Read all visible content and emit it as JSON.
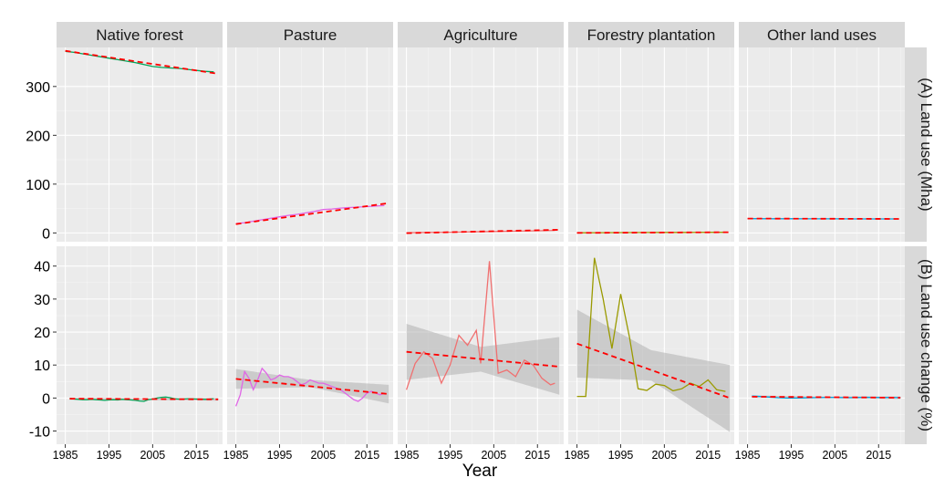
{
  "chart_data": {
    "type": "line",
    "xlabel": "Year",
    "x_ticks": [
      1985,
      1995,
      2005,
      2015
    ],
    "xlim": [
      1983,
      2021
    ],
    "grid": true,
    "legend": "none",
    "facet_columns": [
      "Native forest",
      "Pasture",
      "Agriculture",
      "Forestry plantation",
      "Other land uses"
    ],
    "facet_rows": [
      {
        "label": "(A) Land use (Mha)",
        "ylim": [
          -18,
          380
        ],
        "y_ticks": [
          0,
          100,
          200,
          300
        ]
      },
      {
        "label": "(B) Land use change (%)",
        "ylim": [
          -14,
          46
        ],
        "y_ticks": [
          -10,
          0,
          10,
          20,
          30,
          40
        ]
      }
    ],
    "colors": {
      "Native forest": "#00a65a",
      "Pasture": "#e066e6",
      "Agriculture": "#f07070",
      "Forestry plantation": "#9a9a00",
      "Other land uses": "#00a5e0",
      "trend": "#ff0000",
      "ribbon": "#b0b0b0",
      "panel_bg": "#ebebeb",
      "strip_bg": "#d9d9d9"
    },
    "panels_A": [
      {
        "facet": "Native forest",
        "years": [
          1985,
          1987,
          1989,
          1991,
          1993,
          1995,
          1997,
          1999,
          2001,
          2003,
          2005,
          2007,
          2009,
          2011,
          2013,
          2015,
          2017,
          2019
        ],
        "values": [
          372,
          370,
          367,
          364,
          361,
          358,
          355,
          352,
          349,
          345,
          341,
          339,
          338,
          337,
          335,
          333,
          331,
          330
        ],
        "trend": [
          [
            1985,
            373
          ],
          [
            2020,
            326
          ]
        ]
      },
      {
        "facet": "Pasture",
        "years": [
          1985,
          1987,
          1989,
          1991,
          1993,
          1995,
          1997,
          1999,
          2001,
          2003,
          2005,
          2007,
          2009,
          2011,
          2013,
          2015,
          2017,
          2019
        ],
        "values": [
          19,
          21,
          24,
          27,
          30,
          33,
          36,
          38,
          41,
          44,
          48,
          49,
          51,
          52,
          53,
          54,
          55,
          56
        ],
        "trend": [
          [
            1985,
            18
          ],
          [
            2020,
            61
          ]
        ]
      },
      {
        "facet": "Agriculture",
        "years": [
          1985,
          1990,
          1995,
          2000,
          2005,
          2010,
          2015,
          2019
        ],
        "values": [
          0.5,
          1.0,
          1.5,
          2.2,
          3.0,
          3.6,
          4.4,
          5.2
        ],
        "trend": [
          [
            1985,
            -0.5
          ],
          [
            2020,
            6.5
          ]
        ]
      },
      {
        "facet": "Forestry plantation",
        "years": [
          1985,
          1990,
          1995,
          2000,
          2005,
          2010,
          2015,
          2019
        ],
        "values": [
          0.3,
          0.5,
          0.7,
          0.9,
          1.0,
          1.1,
          1.2,
          1.3
        ],
        "trend": [
          [
            1985,
            0.2
          ],
          [
            2020,
            1.5
          ]
        ]
      },
      {
        "facet": "Other land uses",
        "years": [
          1985,
          1990,
          1995,
          2000,
          2005,
          2010,
          2015,
          2019
        ],
        "values": [
          29.2,
          29.1,
          29.0,
          28.9,
          28.9,
          28.8,
          28.8,
          28.8
        ],
        "trend": [
          [
            1985,
            29.4
          ],
          [
            2020,
            28.7
          ]
        ]
      }
    ],
    "panels_B": [
      {
        "facet": "Native forest",
        "years": [
          1986,
          1987,
          1988,
          1989,
          1990,
          1991,
          1992,
          1993,
          1994,
          1995,
          1996,
          1997,
          1998,
          1999,
          2000,
          2001,
          2002,
          2003,
          2004,
          2005,
          2006,
          2007,
          2008,
          2009,
          2010,
          2011,
          2012,
          2013,
          2014,
          2015,
          2016,
          2017,
          2018,
          2019
        ],
        "values": [
          -0.1,
          -0.3,
          -0.4,
          -0.5,
          -0.5,
          -0.4,
          -0.5,
          -0.6,
          -0.7,
          -0.6,
          -0.5,
          -0.6,
          -0.4,
          -0.5,
          -0.6,
          -0.7,
          -0.9,
          -1.0,
          -0.5,
          -0.3,
          0.0,
          0.2,
          0.3,
          0.1,
          -0.2,
          -0.3,
          -0.3,
          -0.2,
          -0.2,
          -0.3,
          -0.3,
          -0.4,
          -0.3,
          -0.2
        ],
        "trend": [
          [
            1986,
            -0.2
          ],
          [
            2020,
            -0.4
          ]
        ],
        "ribbon_upper": [
          [
            1986,
            0.1
          ],
          [
            2003,
            -0.1
          ],
          [
            2020,
            0.0
          ]
        ],
        "ribbon_lower": [
          [
            1986,
            -0.6
          ],
          [
            2003,
            -0.6
          ],
          [
            2020,
            -0.8
          ]
        ]
      },
      {
        "facet": "Pasture",
        "years": [
          1985,
          1986,
          1987,
          1988,
          1989,
          1990,
          1991,
          1992,
          1993,
          1994,
          1995,
          1996,
          1997,
          1998,
          1999,
          2000,
          2001,
          2002,
          2003,
          2004,
          2005,
          2006,
          2007,
          2008,
          2009,
          2010,
          2011,
          2012,
          2013,
          2014,
          2015,
          2016,
          2017,
          2018,
          2019
        ],
        "values": [
          -2.5,
          1.0,
          8.0,
          6.0,
          2.5,
          5.5,
          9.0,
          7.5,
          5.5,
          6.0,
          7.0,
          6.5,
          6.5,
          6.0,
          5.0,
          4.0,
          4.5,
          5.5,
          5.0,
          4.5,
          4.5,
          4.0,
          3.5,
          3.0,
          2.5,
          1.5,
          0.5,
          -0.5,
          -1.0,
          0.0,
          1.5,
          2.0,
          1.5,
          1.0,
          1.5
        ],
        "trend": [
          [
            1985,
            5.8
          ],
          [
            2020,
            1.2
          ]
        ],
        "ribbon_upper": [
          [
            1985,
            8.8
          ],
          [
            2002,
            5.5
          ],
          [
            2020,
            4.0
          ]
        ],
        "ribbon_lower": [
          [
            1985,
            2.8
          ],
          [
            2002,
            3.3
          ],
          [
            2020,
            -1.6
          ]
        ]
      },
      {
        "facet": "Agriculture",
        "years": [
          1985,
          1987,
          1989,
          1991,
          1993,
          1995,
          1997,
          1999,
          2001,
          2002,
          2004,
          2006,
          2008,
          2010,
          2012,
          2014,
          2016,
          2018,
          2019
        ],
        "values": [
          2.5,
          10.5,
          14.0,
          12.0,
          4.5,
          10.0,
          19.0,
          16.0,
          20.5,
          10.5,
          41.5,
          7.5,
          8.5,
          6.5,
          11.5,
          10.0,
          6.0,
          4.0,
          4.5
        ],
        "trend": [
          [
            1985,
            14.0
          ],
          [
            2020,
            9.5
          ]
        ],
        "ribbon_upper": [
          [
            1985,
            22.5
          ],
          [
            2002,
            15.5
          ],
          [
            2020,
            18.5
          ]
        ],
        "ribbon_lower": [
          [
            1985,
            5.5
          ],
          [
            2002,
            8.0
          ],
          [
            2020,
            1.0
          ]
        ]
      },
      {
        "facet": "Forestry plantation",
        "years": [
          1985,
          1987,
          1989,
          1991,
          1993,
          1995,
          1997,
          1999,
          2001,
          2003,
          2005,
          2007,
          2009,
          2011,
          2013,
          2015,
          2017,
          2019
        ],
        "values": [
          0.5,
          0.5,
          42.5,
          30.0,
          15.0,
          31.5,
          18.5,
          2.8,
          2.3,
          4.2,
          3.8,
          2.2,
          2.8,
          4.5,
          3.5,
          5.5,
          2.5,
          2.0
        ],
        "trend": [
          [
            1985,
            16.5
          ],
          [
            2020,
            0.0
          ]
        ],
        "ribbon_upper": [
          [
            1985,
            26.8
          ],
          [
            2002,
            14.5
          ],
          [
            2020,
            10.0
          ]
        ],
        "ribbon_lower": [
          [
            1985,
            6.2
          ],
          [
            2002,
            5.3
          ],
          [
            2020,
            -10.3
          ]
        ]
      },
      {
        "facet": "Other land uses",
        "years": [
          1986,
          1988,
          1990,
          1992,
          1994,
          1996,
          1998,
          2000,
          2002,
          2004,
          2006,
          2008,
          2010,
          2012,
          2014,
          2016,
          2018,
          2020
        ],
        "values": [
          0.6,
          0.5,
          0.3,
          0.1,
          0.0,
          0.0,
          0.05,
          0.1,
          0.15,
          0.2,
          0.15,
          0.1,
          0.15,
          0.25,
          0.2,
          0.15,
          0.2,
          0.1
        ],
        "trend": [
          [
            1986,
            0.4
          ],
          [
            2020,
            0.1
          ]
        ],
        "ribbon_upper": [
          [
            1986,
            0.8
          ],
          [
            2003,
            0.4
          ],
          [
            2020,
            0.5
          ]
        ],
        "ribbon_lower": [
          [
            1986,
            0.0
          ],
          [
            2003,
            0.0
          ],
          [
            2020,
            -0.3
          ]
        ]
      }
    ]
  }
}
